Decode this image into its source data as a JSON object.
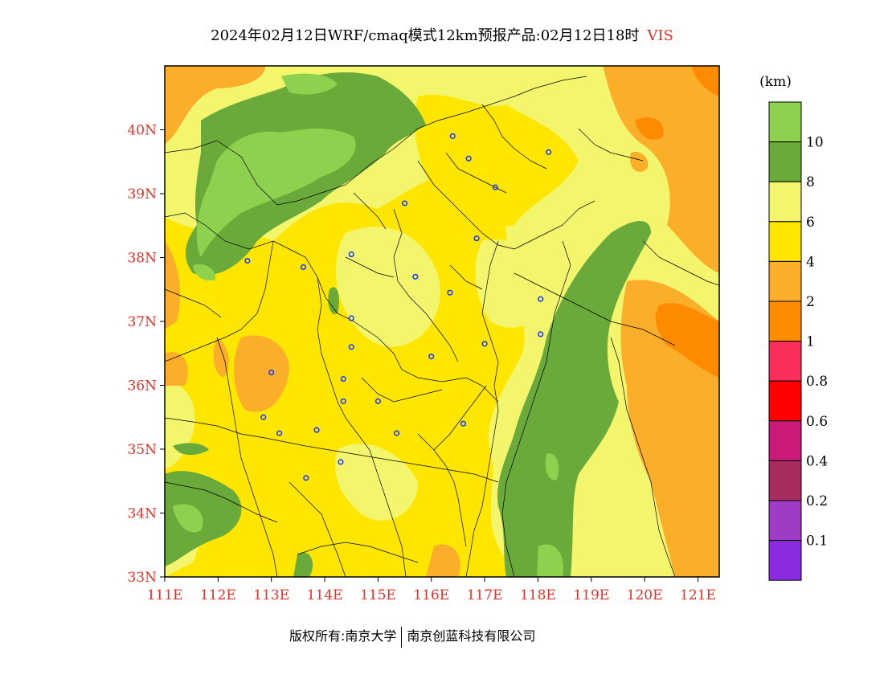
{
  "title": {
    "main": "2024年02月12日WRF/cmaq模式12km预报产品:02月12日18时",
    "variable": "VIS"
  },
  "axes": {
    "lat_labels": [
      "40N",
      "39N",
      "38N",
      "37N",
      "36N",
      "35N",
      "34N",
      "33N"
    ],
    "lat_values": [
      40,
      39,
      38,
      37,
      36,
      35,
      34,
      33
    ],
    "lon_labels": [
      "111E",
      "112E",
      "113E",
      "114E",
      "115E",
      "116E",
      "117E",
      "118E",
      "119E",
      "120E",
      "121E"
    ],
    "lon_values": [
      111,
      112,
      113,
      114,
      115,
      116,
      117,
      118,
      119,
      120,
      121
    ],
    "lon_range": [
      111,
      121.4
    ],
    "lat_range": [
      33,
      41
    ],
    "label_color": "#e8302a"
  },
  "legend": {
    "unit": "(km)",
    "bins": [
      {
        "color": "#8dd14f"
      },
      {
        "color": "#6aaa3a",
        "label": "10"
      },
      {
        "color": "#f3f56c",
        "label": "8"
      },
      {
        "color": "#ffe600",
        "label": "6"
      },
      {
        "color": "#fbae2a",
        "label": "4"
      },
      {
        "color": "#ff8c00",
        "label": "2"
      },
      {
        "color": "#fa2e5a",
        "label": "1"
      },
      {
        "color": "#ff0000",
        "label": "0.8"
      },
      {
        "color": "#cc1a7a",
        "label": "0.6"
      },
      {
        "color": "#a82c5f",
        "label": "0.4"
      },
      {
        "color": "#a03bc6",
        "label": "0.2"
      },
      {
        "color": "#8a2be2",
        "label": "0.1"
      }
    ]
  },
  "stations": [
    [
      116.4,
      39.9
    ],
    [
      116.7,
      39.55
    ],
    [
      118.2,
      39.65
    ],
    [
      117.2,
      39.1
    ],
    [
      115.5,
      38.85
    ],
    [
      116.85,
      38.3
    ],
    [
      112.55,
      37.95
    ],
    [
      113.6,
      37.85
    ],
    [
      114.5,
      38.05
    ],
    [
      115.7,
      37.7
    ],
    [
      116.35,
      37.45
    ],
    [
      118.05,
      37.35
    ],
    [
      114.5,
      37.05
    ],
    [
      118.05,
      36.8
    ],
    [
      117.0,
      36.65
    ],
    [
      114.5,
      36.6
    ],
    [
      116.0,
      36.45
    ],
    [
      113.0,
      36.2
    ],
    [
      114.35,
      36.1
    ],
    [
      112.85,
      35.5
    ],
    [
      114.35,
      35.75
    ],
    [
      115.0,
      35.75
    ],
    [
      116.6,
      35.4
    ],
    [
      113.15,
      35.25
    ],
    [
      113.85,
      35.3
    ],
    [
      115.35,
      35.25
    ],
    [
      114.3,
      34.8
    ],
    [
      113.65,
      34.55
    ]
  ],
  "footer": {
    "left": "版权所有:南京大学",
    "right": "南京创蓝科技有限公司"
  }
}
